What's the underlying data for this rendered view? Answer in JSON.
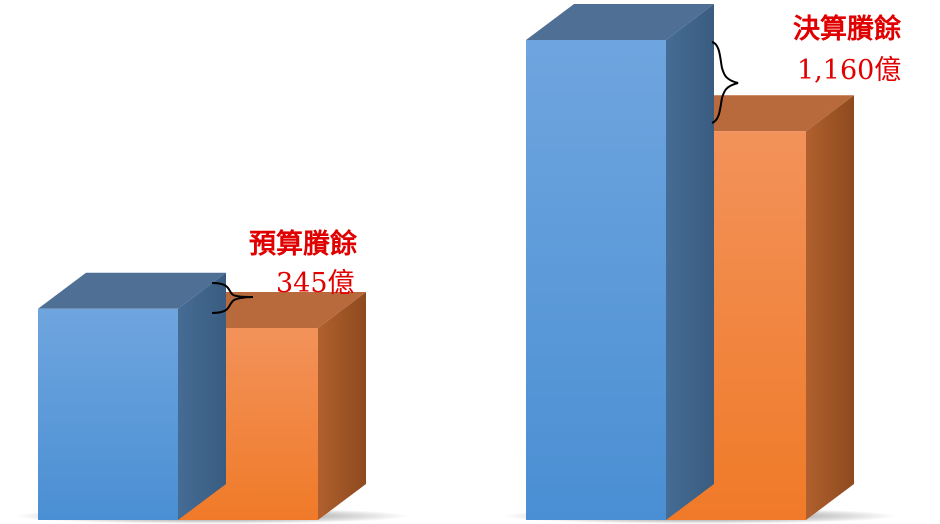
{
  "chart_data": {
    "type": "bar",
    "style": "3d-column",
    "grid": false,
    "legend": "none",
    "groups": [
      {
        "index": 0,
        "bars": [
          {
            "color": "blue",
            "value": 0.44
          },
          {
            "color": "orange",
            "value": 0.4
          }
        ],
        "annotation": {
          "title": "預算賸餘",
          "value": "345億"
        }
      },
      {
        "index": 1,
        "bars": [
          {
            "color": "blue",
            "value": 1.0
          },
          {
            "color": "orange",
            "value": 0.81
          }
        ],
        "annotation": {
          "title": "決算賸餘",
          "value": "1,160億"
        }
      }
    ],
    "colors": {
      "blue_front_top": "#6fa5df",
      "blue_front_bottom": "#4a8fd3",
      "blue_top": "#4f6f95",
      "blue_side": "#3f6389",
      "orange_front_top": "#f2925a",
      "orange_front_bottom": "#f07a28",
      "orange_top": "#b86a3c",
      "orange_side": "#a35524",
      "annotation": "#e00000",
      "brace": "#000000"
    }
  }
}
